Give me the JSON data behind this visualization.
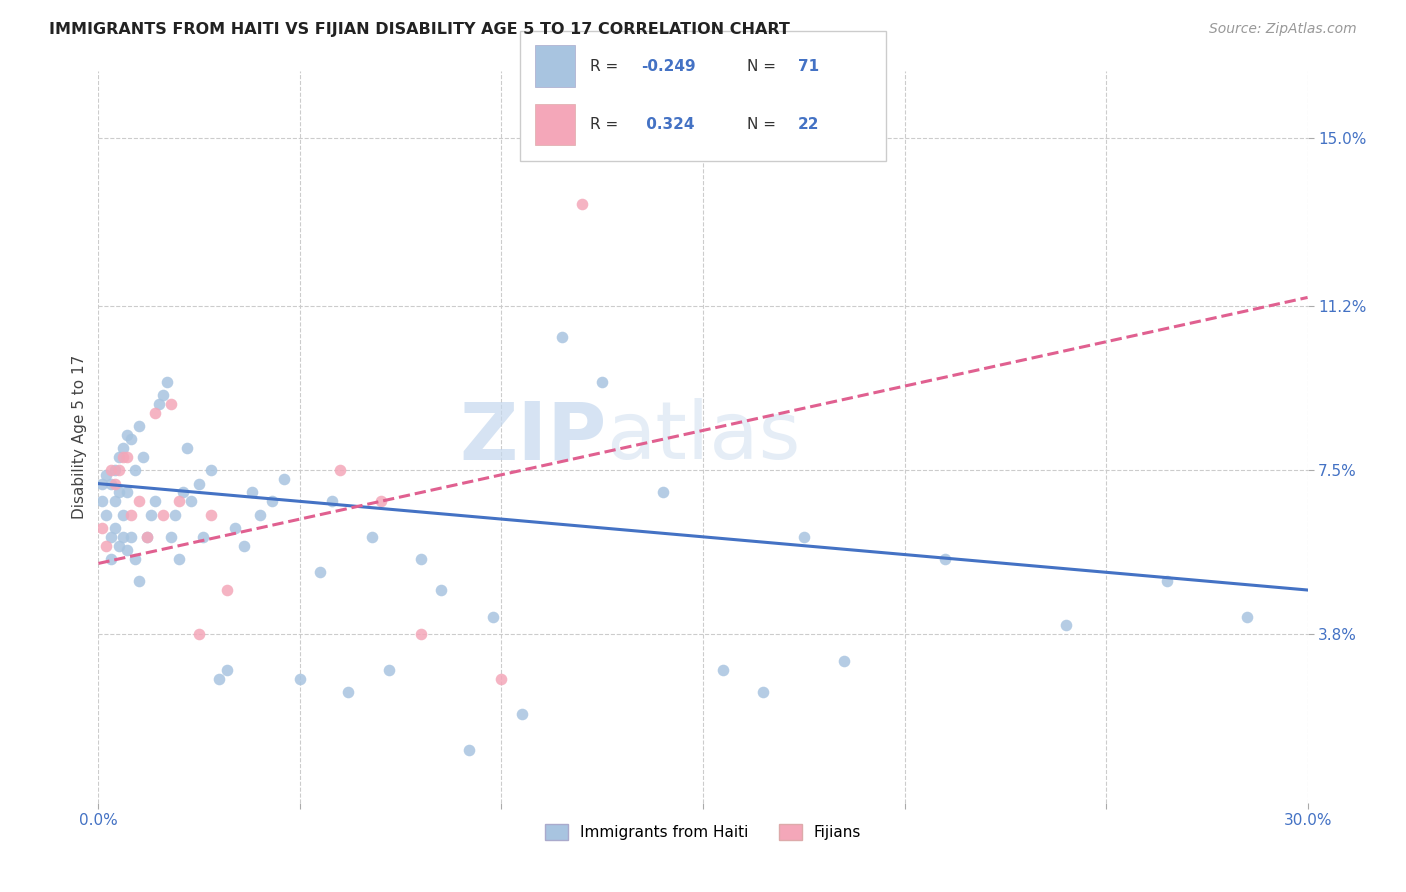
{
  "title": "IMMIGRANTS FROM HAITI VS FIJIAN DISABILITY AGE 5 TO 17 CORRELATION CHART",
  "source": "Source: ZipAtlas.com",
  "ylabel": "Disability Age 5 to 17",
  "xmin": 0.0,
  "xmax": 0.3,
  "ymin": 0.0,
  "ymax": 0.165,
  "yticks": [
    0.038,
    0.075,
    0.112,
    0.15
  ],
  "ytick_labels": [
    "3.8%",
    "7.5%",
    "11.2%",
    "15.0%"
  ],
  "xticks": [
    0.0,
    0.05,
    0.1,
    0.15,
    0.2,
    0.25,
    0.3
  ],
  "xtick_labels": [
    "0.0%",
    "",
    "",
    "",
    "",
    "",
    "30.0%"
  ],
  "haiti_color": "#a8c4e0",
  "fijian_color": "#f4a7b9",
  "haiti_R": -0.249,
  "haiti_N": 71,
  "fijian_R": 0.324,
  "fijian_N": 22,
  "haiti_line_color": "#4472c4",
  "fijian_line_color": "#e06090",
  "watermark_zip": "ZIP",
  "watermark_atlas": "atlas",
  "haiti_scatter_x": [
    0.001,
    0.001,
    0.002,
    0.002,
    0.003,
    0.003,
    0.003,
    0.004,
    0.004,
    0.004,
    0.005,
    0.005,
    0.005,
    0.006,
    0.006,
    0.006,
    0.007,
    0.007,
    0.007,
    0.008,
    0.008,
    0.009,
    0.009,
    0.01,
    0.01,
    0.011,
    0.012,
    0.013,
    0.014,
    0.015,
    0.016,
    0.017,
    0.018,
    0.019,
    0.02,
    0.021,
    0.022,
    0.023,
    0.025,
    0.026,
    0.028,
    0.03,
    0.032,
    0.034,
    0.036,
    0.038,
    0.04,
    0.043,
    0.046,
    0.05,
    0.055,
    0.058,
    0.062,
    0.068,
    0.072,
    0.08,
    0.085,
    0.092,
    0.098,
    0.105,
    0.115,
    0.125,
    0.14,
    0.155,
    0.165,
    0.175,
    0.185,
    0.21,
    0.24,
    0.265,
    0.285
  ],
  "haiti_scatter_y": [
    0.072,
    0.068,
    0.074,
    0.065,
    0.072,
    0.06,
    0.055,
    0.075,
    0.068,
    0.062,
    0.078,
    0.07,
    0.058,
    0.08,
    0.065,
    0.06,
    0.083,
    0.07,
    0.057,
    0.082,
    0.06,
    0.075,
    0.055,
    0.085,
    0.05,
    0.078,
    0.06,
    0.065,
    0.068,
    0.09,
    0.092,
    0.095,
    0.06,
    0.065,
    0.055,
    0.07,
    0.08,
    0.068,
    0.072,
    0.06,
    0.075,
    0.028,
    0.03,
    0.062,
    0.058,
    0.07,
    0.065,
    0.068,
    0.073,
    0.028,
    0.052,
    0.068,
    0.025,
    0.06,
    0.03,
    0.055,
    0.048,
    0.012,
    0.042,
    0.02,
    0.105,
    0.095,
    0.07,
    0.03,
    0.025,
    0.06,
    0.032,
    0.055,
    0.04,
    0.05,
    0.042
  ],
  "fijian_scatter_x": [
    0.001,
    0.002,
    0.003,
    0.004,
    0.005,
    0.006,
    0.007,
    0.008,
    0.01,
    0.012,
    0.014,
    0.016,
    0.018,
    0.02,
    0.025,
    0.028,
    0.032,
    0.06,
    0.07,
    0.08,
    0.1,
    0.12
  ],
  "fijian_scatter_y": [
    0.062,
    0.058,
    0.075,
    0.072,
    0.075,
    0.078,
    0.078,
    0.065,
    0.068,
    0.06,
    0.088,
    0.065,
    0.09,
    0.068,
    0.038,
    0.065,
    0.048,
    0.075,
    0.068,
    0.038,
    0.028,
    0.135
  ],
  "haiti_line_x0": 0.0,
  "haiti_line_y0": 0.072,
  "haiti_line_x1": 0.3,
  "haiti_line_y1": 0.048,
  "fijian_line_x0": 0.0,
  "fijian_line_y0": 0.054,
  "fijian_line_x1": 0.3,
  "fijian_line_y1": 0.114
}
